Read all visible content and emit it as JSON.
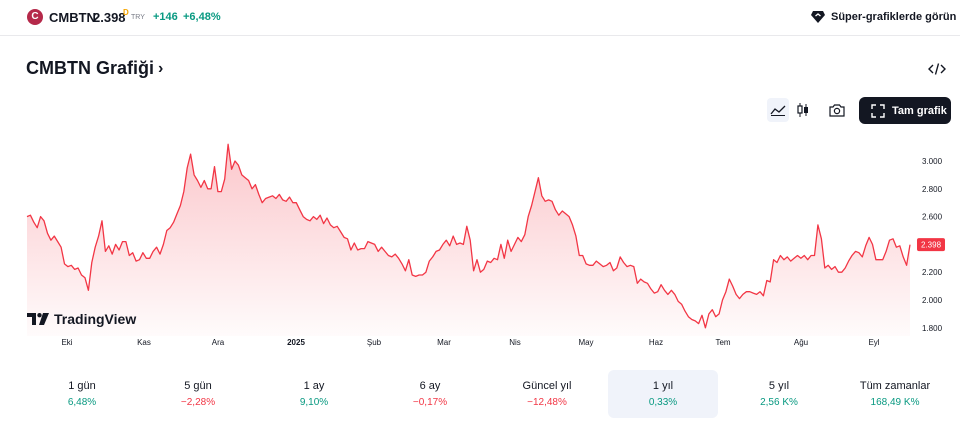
{
  "topbar": {
    "logo_letter": "C",
    "symbol": "CMBTN",
    "price": "2.398",
    "price_marker": "D",
    "currency": "TRY",
    "change": "+146",
    "change_pct": "+6,48%",
    "super_label": "Süper-grafiklerde görün"
  },
  "header": {
    "title": "CMBTN Grafiği",
    "chevron": "›"
  },
  "toolbar": {
    "full_chart_label": "Tam grafik"
  },
  "watermark": {
    "text": "TradingView"
  },
  "colors": {
    "up": "#089981",
    "down": "#f23645",
    "line": "#f23645",
    "fill": "#f23645",
    "dark": "#131722"
  },
  "chart_data": {
    "type": "area",
    "ylabels": [
      "3.000",
      "2.800",
      "2.600",
      "2.400",
      "2.200",
      "2.000",
      "1.800"
    ],
    "y_ticks": [
      3000,
      2800,
      2600,
      2400,
      2200,
      2000,
      1800
    ],
    "ylim": [
      1760,
      3150
    ],
    "x_ticks": [
      "Eki",
      "Kas",
      "Ara",
      "2025",
      "Şub",
      "Mar",
      "Nis",
      "May",
      "Haz",
      "Tem",
      "Ağu",
      "Eyl"
    ],
    "last_value_label": "2.398",
    "last_value": 2398,
    "values": [
      2600,
      2610,
      2560,
      2520,
      2600,
      2570,
      2480,
      2430,
      2460,
      2420,
      2380,
      2260,
      2240,
      2250,
      2220,
      2230,
      2180,
      2160,
      2070,
      2270,
      2380,
      2460,
      2570,
      2350,
      2390,
      2330,
      2400,
      2360,
      2420,
      2420,
      2320,
      2340,
      2280,
      2290,
      2340,
      2300,
      2300,
      2350,
      2380,
      2330,
      2400,
      2500,
      2520,
      2560,
      2620,
      2680,
      2780,
      2950,
      3050,
      2900,
      2860,
      2810,
      2860,
      2800,
      2800,
      2960,
      2780,
      2780,
      2870,
      3120,
      2940,
      3000,
      2970,
      2900,
      2880,
      2860,
      2800,
      2830,
      2760,
      2700,
      2730,
      2740,
      2750,
      2730,
      2760,
      2720,
      2710,
      2740,
      2700,
      2700,
      2650,
      2600,
      2580,
      2570,
      2600,
      2580,
      2610,
      2550,
      2590,
      2540,
      2520,
      2530,
      2490,
      2450,
      2440,
      2360,
      2410,
      2360,
      2370,
      2370,
      2420,
      2410,
      2400,
      2350,
      2380,
      2350,
      2320,
      2310,
      2330,
      2300,
      2260,
      2210,
      2290,
      2180,
      2170,
      2180,
      2180,
      2200,
      2280,
      2310,
      2350,
      2360,
      2400,
      2430,
      2390,
      2460,
      2400,
      2410,
      2400,
      2530,
      2430,
      2210,
      2290,
      2200,
      2220,
      2280,
      2270,
      2300,
      2290,
      2400,
      2300,
      2430,
      2350,
      2400,
      2450,
      2420,
      2470,
      2600,
      2680,
      2780,
      2880,
      2750,
      2710,
      2720,
      2710,
      2650,
      2610,
      2640,
      2620,
      2600,
      2540,
      2460,
      2320,
      2320,
      2260,
      2250,
      2250,
      2280,
      2260,
      2240,
      2250,
      2270,
      2210,
      2230,
      2310,
      2270,
      2240,
      2250,
      2240,
      2120,
      2150,
      2130,
      2120,
      2080,
      2050,
      2060,
      2110,
      2070,
      2040,
      2070,
      2040,
      1990,
      1970,
      1920,
      1880,
      1860,
      1850,
      1830,
      1890,
      1800,
      1900,
      1930,
      1880,
      1900,
      2000,
      2060,
      2150,
      2100,
      2040,
      2010,
      2040,
      2060,
      2060,
      2050,
      2040,
      2060,
      2030,
      2140,
      2130,
      2290,
      2270,
      2320,
      2290,
      2310,
      2280,
      2300,
      2320,
      2300,
      2320,
      2290,
      2320,
      2320,
      2540,
      2440,
      2230,
      2250,
      2220,
      2240,
      2200,
      2200,
      2230,
      2280,
      2320,
      2350,
      2340,
      2310,
      2390,
      2450,
      2400,
      2290,
      2290,
      2290,
      2350,
      2430,
      2440,
      2380,
      2390,
      2310,
      2250,
      2398
    ]
  },
  "periods": [
    {
      "label": "1 gün",
      "value": "6,48%",
      "sign": "pos"
    },
    {
      "label": "5 gün",
      "value": "−2,28%",
      "sign": "neg"
    },
    {
      "label": "1 ay",
      "value": "9,10%",
      "sign": "pos"
    },
    {
      "label": "6 ay",
      "value": "−0,17%",
      "sign": "neg"
    },
    {
      "label": "Güncel yıl",
      "value": "−12,48%",
      "sign": "neg"
    },
    {
      "label": "1 yıl",
      "value": "0,33%",
      "sign": "pos"
    },
    {
      "label": "5 yıl",
      "value": "2,56 K%",
      "sign": "pos"
    },
    {
      "label": "Tüm zamanlar",
      "value": "168,49 K%",
      "sign": "pos"
    }
  ]
}
